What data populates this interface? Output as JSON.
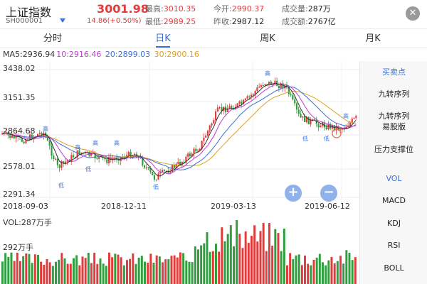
{
  "header": {
    "title": "上证指数",
    "code": "SH000001",
    "price": "3001.98",
    "change": "14.86(+0.50%)",
    "high_label": "最高:",
    "high_value": "3010.35",
    "low_label": "最低:",
    "low_value": "2989.25",
    "open_label": "今开:",
    "open_value": "2990.37",
    "prevclose_label": "昨收:",
    "prevclose_value": "2987.12",
    "volume_label": "成交量:",
    "volume_value": "287万",
    "amount_label": "成交额:",
    "amount_value": "2767亿",
    "close_icon": "close-icon",
    "dropdown_icon": "caret-down-icon"
  },
  "tabs": [
    {
      "label": "分时",
      "active": false
    },
    {
      "label": "日K",
      "active": true
    },
    {
      "label": "周K",
      "active": false
    },
    {
      "label": "月K",
      "active": false
    }
  ],
  "ma_legend": {
    "ma5": "MA5:2936.94",
    "ma10": "10:2916.46",
    "ma20": "20:2899.03",
    "ma30": "30:2900.16"
  },
  "colors": {
    "up": "#e33b3b",
    "down": "#2e9e3e",
    "ma5": "#333333",
    "ma10": "#c23bd6",
    "ma20": "#3d6fd6",
    "ma30": "#e0a020",
    "accent": "#3d6fd6"
  },
  "y_axis": [
    "3438.02",
    "3151.35",
    "2864.68",
    "2578.01",
    "2291.34"
  ],
  "x_axis": [
    "2018-09-03",
    "2018-12-11",
    "2019-03-13",
    "2019-06-12"
  ],
  "volume": {
    "label": "VOL:287万手",
    "mid_label": "292万手"
  },
  "markers": {
    "high": "高",
    "low": "低"
  },
  "sidebar": {
    "items": [
      {
        "label": "买卖点",
        "style": "blue"
      },
      {
        "label": "九转序列",
        "style": "normal"
      },
      {
        "label": "九转序列",
        "style": "normal"
      },
      {
        "label": "易股版",
        "style": "normal"
      },
      {
        "label": "压力支撑位",
        "style": "normal"
      },
      {
        "label": "VOL",
        "style": "blue"
      },
      {
        "label": "MACD",
        "style": "normal"
      },
      {
        "label": "KDJ",
        "style": "normal"
      },
      {
        "label": "RSI",
        "style": "normal"
      },
      {
        "label": "BOLL",
        "style": "normal"
      }
    ]
  },
  "zoom": {
    "in_icon": "plus-icon",
    "out_icon": "minus-icon",
    "in_glyph": "+",
    "out_glyph": "−"
  }
}
